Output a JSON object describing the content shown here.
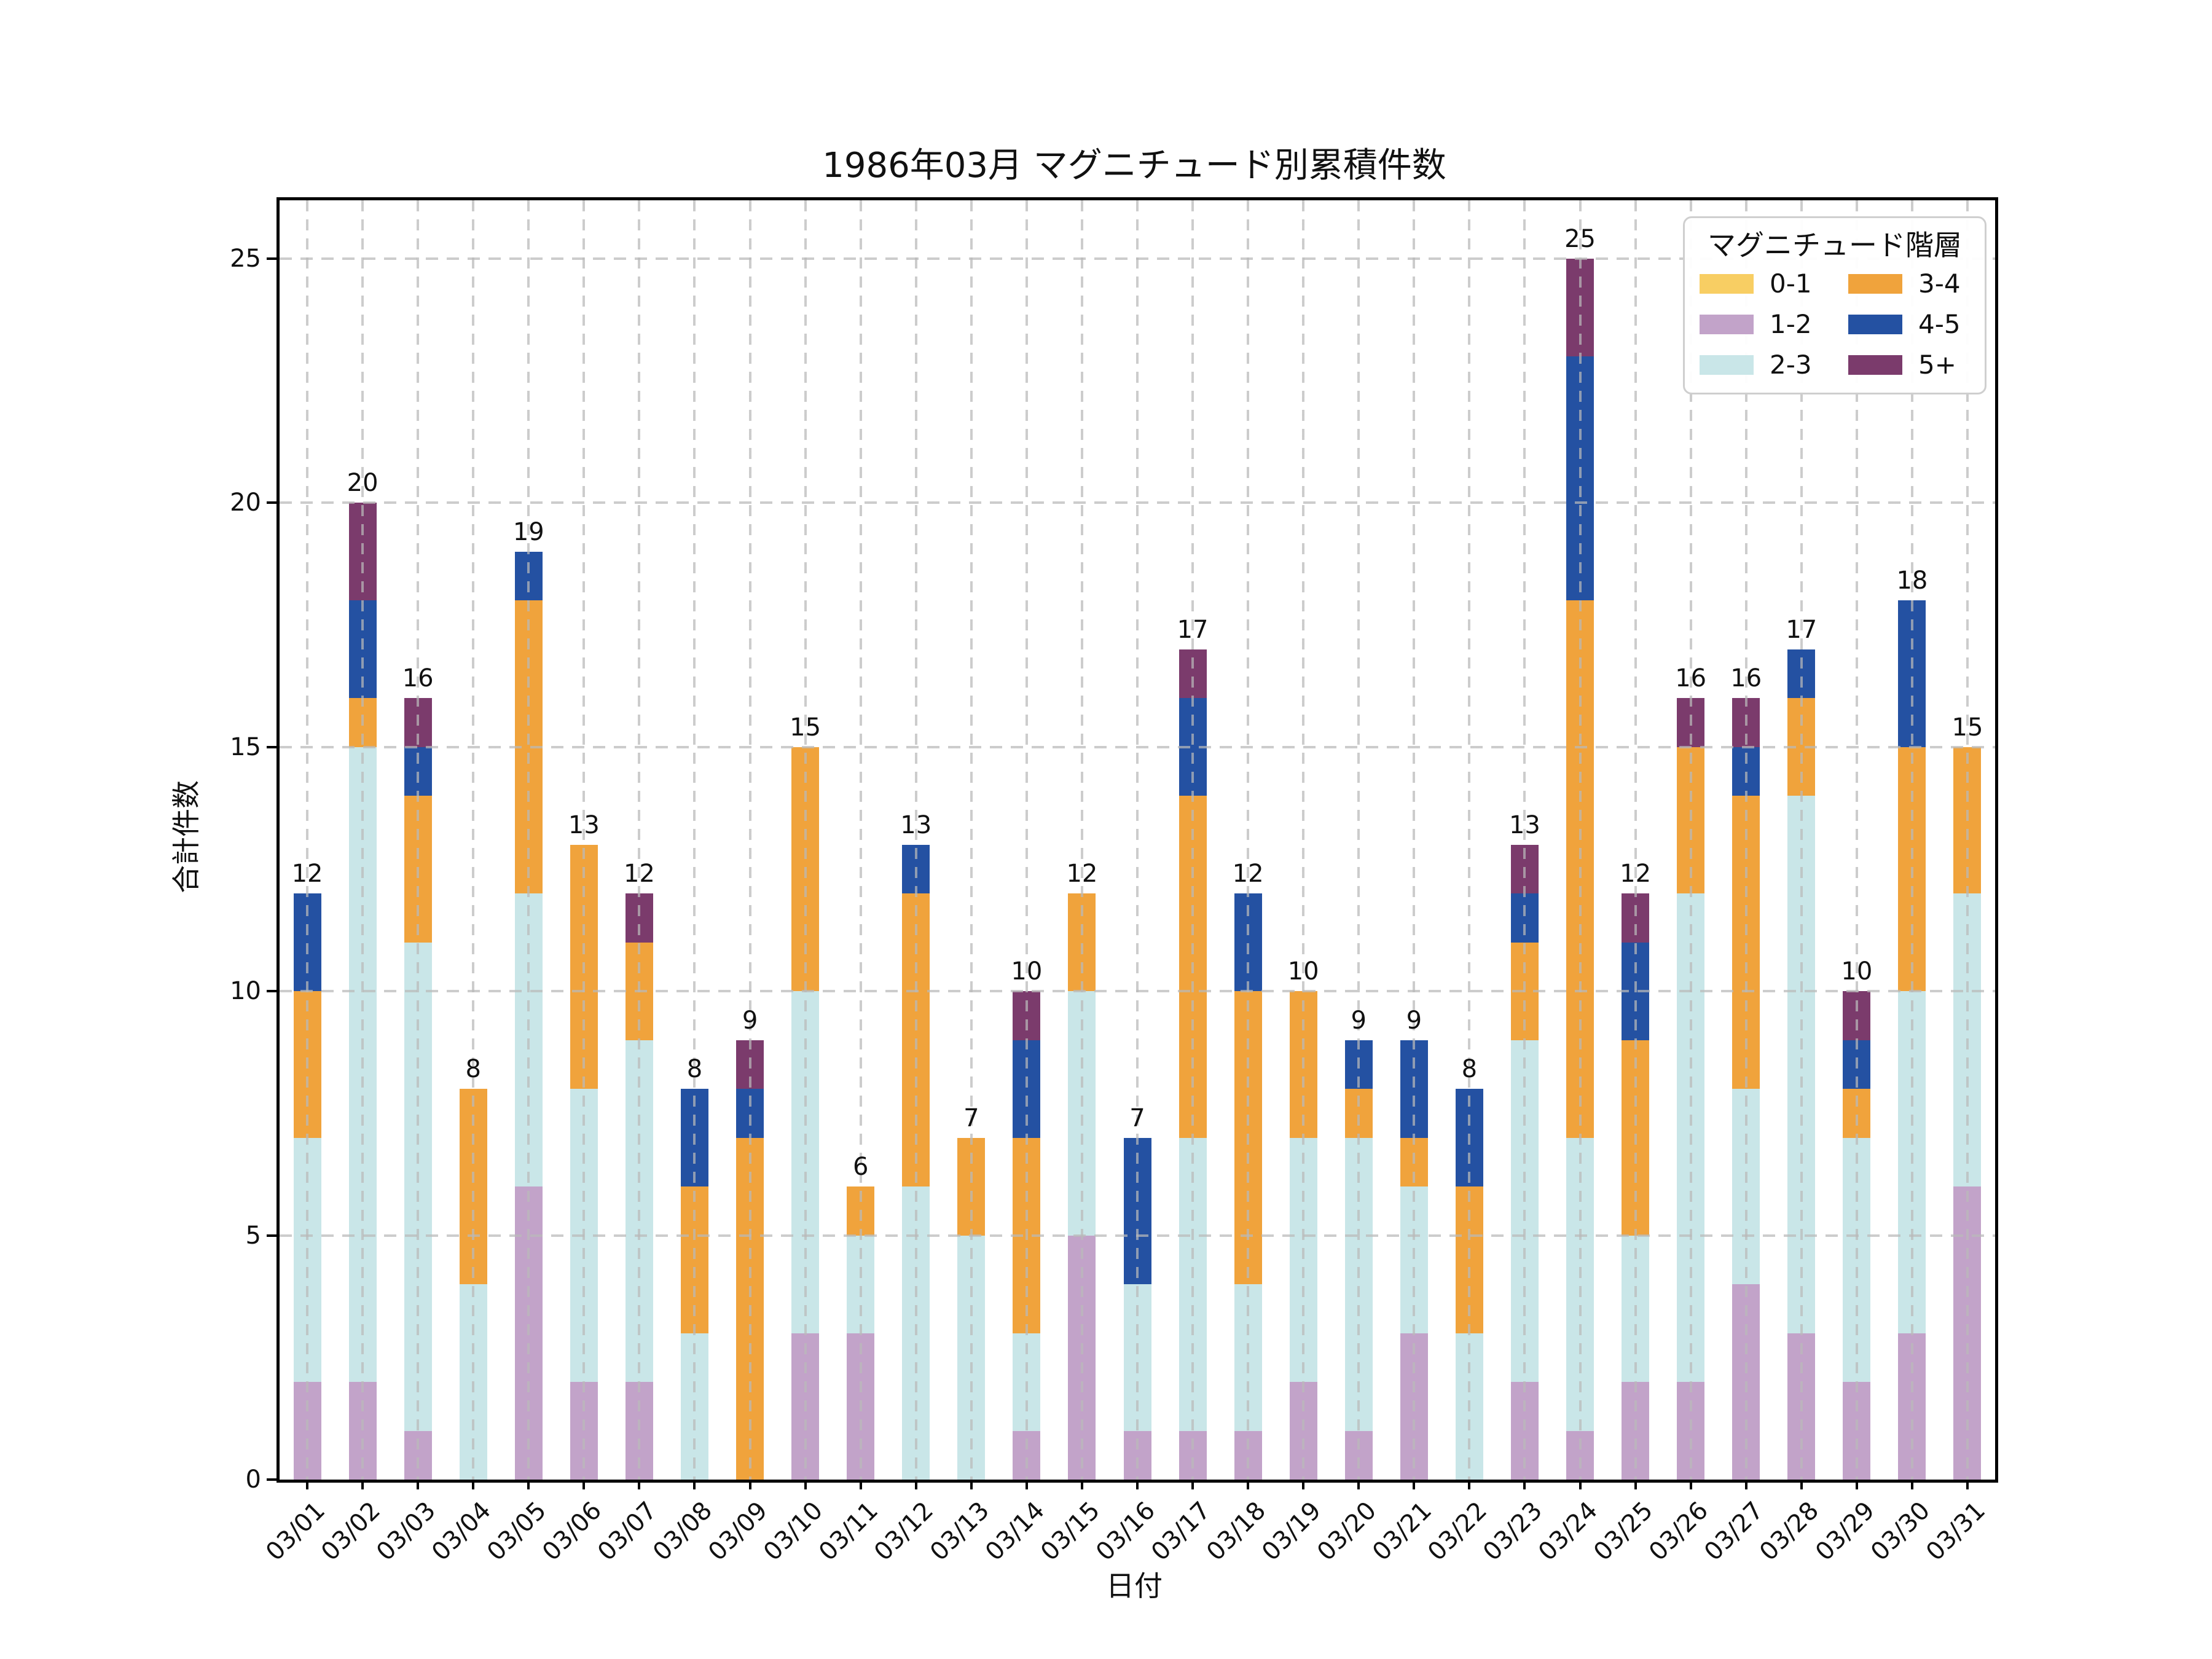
{
  "title": "1986年03月 マグニチュード別累積件数",
  "x_axis_label": "日付",
  "y_axis_label": "合計件数",
  "legend": {
    "title": "マグニチュード階層"
  },
  "chart_data": {
    "type": "bar",
    "stacked": true,
    "title": "1986年03月 マグニチュード別累積件数",
    "xlabel": "日付",
    "ylabel": "合計件数",
    "ylim": [
      0,
      26
    ],
    "grid": true,
    "legend_position": "upper right",
    "y_ticks": [
      0,
      5,
      10,
      15,
      20,
      25
    ],
    "categories": [
      "03/01",
      "03/02",
      "03/03",
      "03/04",
      "03/05",
      "03/06",
      "03/07",
      "03/08",
      "03/09",
      "03/10",
      "03/11",
      "03/12",
      "03/13",
      "03/14",
      "03/15",
      "03/16",
      "03/17",
      "03/18",
      "03/19",
      "03/20",
      "03/21",
      "03/22",
      "03/23",
      "03/24",
      "03/25",
      "03/26",
      "03/27",
      "03/28",
      "03/29",
      "03/30",
      "03/31"
    ],
    "series": [
      {
        "name": "0-1",
        "color": "#F8CE63",
        "values": [
          0,
          0,
          0,
          0,
          0,
          0,
          0,
          0,
          0,
          0,
          0,
          0,
          0,
          0,
          0,
          0,
          0,
          0,
          0,
          0,
          0,
          0,
          0,
          0,
          0,
          0,
          0,
          0,
          0,
          0,
          0
        ]
      },
      {
        "name": "1-2",
        "color": "#C2A3C9",
        "values": [
          2,
          2,
          1,
          0,
          6,
          2,
          2,
          0,
          0,
          3,
          3,
          0,
          0,
          1,
          5,
          1,
          1,
          1,
          2,
          1,
          3,
          0,
          2,
          1,
          2,
          2,
          4,
          3,
          2,
          3,
          6
        ]
      },
      {
        "name": "2-3",
        "color": "#C9E6E8",
        "values": [
          5,
          13,
          10,
          4,
          6,
          6,
          7,
          3,
          0,
          7,
          2,
          6,
          5,
          2,
          5,
          3,
          6,
          3,
          5,
          6,
          3,
          3,
          7,
          6,
          3,
          10,
          4,
          11,
          5,
          7,
          6
        ]
      },
      {
        "name": "3-4",
        "color": "#F0A33C",
        "values": [
          3,
          1,
          3,
          4,
          6,
          5,
          2,
          3,
          7,
          5,
          1,
          6,
          2,
          4,
          2,
          0,
          7,
          6,
          3,
          1,
          1,
          3,
          2,
          11,
          4,
          3,
          6,
          2,
          1,
          5,
          3
        ]
      },
      {
        "name": "4-5",
        "color": "#2451A2",
        "values": [
          2,
          2,
          1,
          0,
          1,
          0,
          0,
          2,
          1,
          0,
          0,
          1,
          0,
          2,
          0,
          3,
          2,
          2,
          0,
          1,
          2,
          2,
          1,
          5,
          2,
          0,
          1,
          1,
          1,
          3,
          0
        ]
      },
      {
        "name": "5+",
        "color": "#7B3B6C",
        "values": [
          0,
          2,
          1,
          0,
          0,
          0,
          1,
          0,
          1,
          0,
          0,
          0,
          0,
          1,
          0,
          0,
          1,
          0,
          0,
          0,
          0,
          0,
          1,
          2,
          1,
          1,
          1,
          0,
          1,
          0,
          0
        ]
      }
    ],
    "totals": [
      12,
      20,
      16,
      8,
      19,
      13,
      12,
      8,
      9,
      15,
      6,
      13,
      7,
      10,
      12,
      7,
      17,
      12,
      10,
      9,
      9,
      8,
      13,
      25,
      12,
      16,
      16,
      17,
      10,
      18,
      15
    ]
  }
}
